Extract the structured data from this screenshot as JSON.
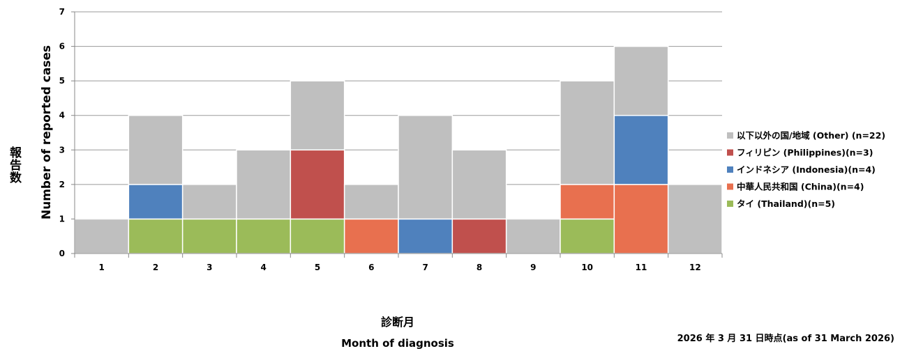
{
  "chart_data": {
    "type": "bar",
    "stacked": true,
    "categories": [
      "1",
      "2",
      "3",
      "4",
      "5",
      "6",
      "7",
      "8",
      "9",
      "10",
      "11",
      "12"
    ],
    "series": [
      {
        "name": "タイ (Thailand)(n=5)",
        "color": "#9bbb59",
        "values": [
          0,
          1,
          1,
          1,
          1,
          0,
          0,
          0,
          0,
          1,
          0,
          0
        ]
      },
      {
        "name": "中華人民共和国 (China)(n=4)",
        "color": "#e8704f",
        "values": [
          0,
          0,
          0,
          0,
          0,
          1,
          0,
          0,
          0,
          1,
          2,
          0
        ]
      },
      {
        "name": "インドネシア (Indonesia)(n=4)",
        "color": "#4f81bd",
        "values": [
          0,
          1,
          0,
          0,
          0,
          0,
          1,
          0,
          0,
          0,
          2,
          0
        ]
      },
      {
        "name": "フィリピン (Philippines)(n=3)",
        "color": "#c0504d",
        "values": [
          0,
          0,
          0,
          0,
          2,
          0,
          0,
          1,
          0,
          0,
          0,
          0
        ]
      },
      {
        "name": "以下以外の国/地域 (Other) (n=22)",
        "color": "#bfbfbf",
        "values": [
          1,
          2,
          1,
          2,
          2,
          1,
          3,
          2,
          1,
          3,
          2,
          2
        ]
      }
    ],
    "y_ticks": [
      "0",
      "1",
      "2",
      "3",
      "4",
      "5",
      "6",
      "7"
    ],
    "ylim": [
      0,
      7
    ],
    "ylabel_jp": "報告数",
    "ylabel_en": "Number of reported cases",
    "xlabel_jp": "診断月",
    "xlabel_en": "Month of diagnosis",
    "grid": true,
    "legend_position": "right",
    "legend_order": [
      4,
      3,
      2,
      1,
      0
    ]
  },
  "footnote": "2026 年 3 月 31 日時点(as of 31 March 2026)"
}
